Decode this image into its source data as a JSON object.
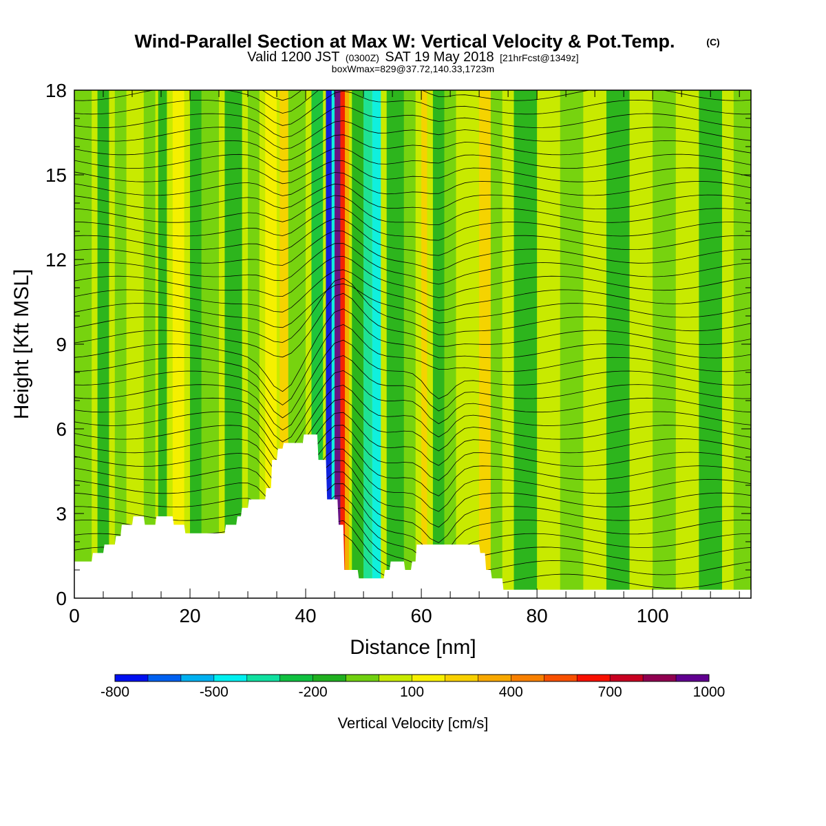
{
  "header": {
    "title": "Wind-Parallel Section at Max W: Vertical Velocity & Pot.Temp.",
    "copyright": "(C)",
    "valid_prefix": "Valid 1200 JST",
    "valid_z": "(0300Z)",
    "valid_date": "SAT 19 May 2018",
    "valid_fcst": "[21hrFcst@1349z]",
    "box_wmax": "boxWmax=829@37.72,140.33,1723m"
  },
  "chart_data": {
    "type": "heatmap",
    "xlabel": "Distance [nm]",
    "ylabel": "Height [Kft MSL]",
    "xlim": [
      0,
      117
    ],
    "ylim": [
      0,
      18
    ],
    "x_ticks": [
      0,
      20,
      40,
      60,
      80,
      100
    ],
    "y_ticks": [
      0,
      3,
      6,
      9,
      12,
      15,
      18
    ],
    "colorbar": {
      "title": "Vertical Velocity [cm/s]",
      "range": [
        -800,
        1000
      ],
      "tick_labels": [
        "-800",
        "-500",
        "-200",
        "100",
        "400",
        "700",
        "1000"
      ],
      "tick_values": [
        -800,
        -500,
        -200,
        100,
        400,
        700,
        1000
      ],
      "colors": [
        "#0010f0",
        "#0060f0",
        "#00b0f0",
        "#00f0f0",
        "#10e0a0",
        "#10c040",
        "#20b020",
        "#70d010",
        "#c8ea00",
        "#f8f000",
        "#f8d000",
        "#f8a800",
        "#f88000",
        "#f85000",
        "#f81000",
        "#c80020",
        "#900050",
        "#600090"
      ]
    },
    "terrain_kft": [
      [
        0,
        1.3
      ],
      [
        3,
        1.3
      ],
      [
        3.2,
        1.6
      ],
      [
        5,
        1.6
      ],
      [
        5.2,
        1.9
      ],
      [
        7,
        1.9
      ],
      [
        7.2,
        2.2
      ],
      [
        8,
        2.2
      ],
      [
        8.2,
        2.6
      ],
      [
        10,
        2.6
      ],
      [
        10.2,
        2.9
      ],
      [
        12,
        2.9
      ],
      [
        12.2,
        2.6
      ],
      [
        14,
        2.6
      ],
      [
        14.2,
        2.9
      ],
      [
        17,
        2.9
      ],
      [
        17.2,
        2.6
      ],
      [
        19,
        2.6
      ],
      [
        19.2,
        2.3
      ],
      [
        26,
        2.3
      ],
      [
        26.2,
        2.6
      ],
      [
        28,
        2.6
      ],
      [
        28.2,
        2.9
      ],
      [
        28.8,
        2.9
      ],
      [
        29,
        3.2
      ],
      [
        30,
        3.2
      ],
      [
        30.2,
        3.5
      ],
      [
        33,
        3.5
      ],
      [
        33.2,
        3.9
      ],
      [
        34,
        3.9
      ],
      [
        34.2,
        4.9
      ],
      [
        35,
        4.9
      ],
      [
        35.2,
        5.3
      ],
      [
        36,
        5.3
      ],
      [
        36.2,
        5.5
      ],
      [
        39.5,
        5.5
      ],
      [
        39.7,
        5.8
      ],
      [
        42,
        5.8
      ],
      [
        42.2,
        4.9
      ],
      [
        43.5,
        4.9
      ],
      [
        43.7,
        3.5
      ],
      [
        45.5,
        3.5
      ],
      [
        45.7,
        2.6
      ],
      [
        46.5,
        2.6
      ],
      [
        46.7,
        1.0
      ],
      [
        49,
        1.0
      ],
      [
        49.2,
        0.7
      ],
      [
        53.5,
        0.7
      ],
      [
        53.7,
        1.0
      ],
      [
        54.5,
        1.0
      ],
      [
        54.7,
        1.3
      ],
      [
        57,
        1.3
      ],
      [
        57.2,
        1.0
      ],
      [
        58.2,
        1.0
      ],
      [
        58.4,
        1.3
      ],
      [
        59,
        1.3
      ],
      [
        59.2,
        1.9
      ],
      [
        70,
        1.9
      ],
      [
        70.2,
        1.6
      ],
      [
        71,
        1.6
      ],
      [
        71.2,
        1.0
      ],
      [
        72,
        1.0
      ],
      [
        72.2,
        0.7
      ],
      [
        74,
        0.7
      ],
      [
        74.2,
        0.3
      ],
      [
        117,
        0.3
      ]
    ]
  }
}
